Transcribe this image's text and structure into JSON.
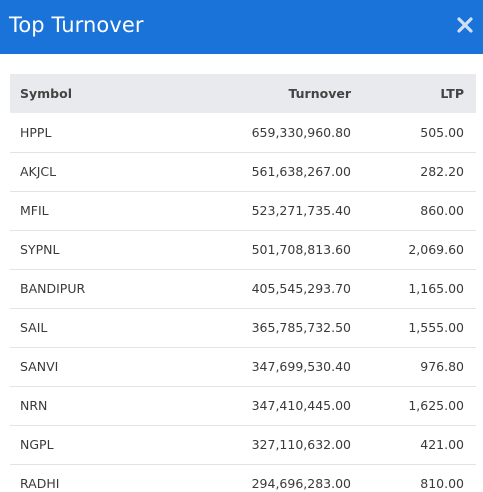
{
  "header": {
    "title": "Top Turnover",
    "close_icon": "close-icon"
  },
  "table": {
    "columns": [
      "Symbol",
      "Turnover",
      "LTP"
    ],
    "rows": [
      {
        "symbol": "HPPL",
        "turnover": "659,330,960.80",
        "ltp": "505.00"
      },
      {
        "symbol": "AKJCL",
        "turnover": "561,638,267.00",
        "ltp": "282.20"
      },
      {
        "symbol": "MFIL",
        "turnover": "523,271,735.40",
        "ltp": "860.00"
      },
      {
        "symbol": "SYPNL",
        "turnover": "501,708,813.60",
        "ltp": "2,069.60"
      },
      {
        "symbol": "BANDIPUR",
        "turnover": "405,545,293.70",
        "ltp": "1,165.00"
      },
      {
        "symbol": "SAIL",
        "turnover": "365,785,732.50",
        "ltp": "1,555.00"
      },
      {
        "symbol": "SANVI",
        "turnover": "347,699,530.40",
        "ltp": "976.80"
      },
      {
        "symbol": "NRN",
        "turnover": "347,410,445.00",
        "ltp": "1,625.00"
      },
      {
        "symbol": "NGPL",
        "turnover": "327,110,632.00",
        "ltp": "421.00"
      },
      {
        "symbol": "RADHI",
        "turnover": "294,696,283.00",
        "ltp": "810.00"
      }
    ]
  },
  "colors": {
    "header_bg": "#1a73d9",
    "table_header_bg": "#e8eaed"
  }
}
